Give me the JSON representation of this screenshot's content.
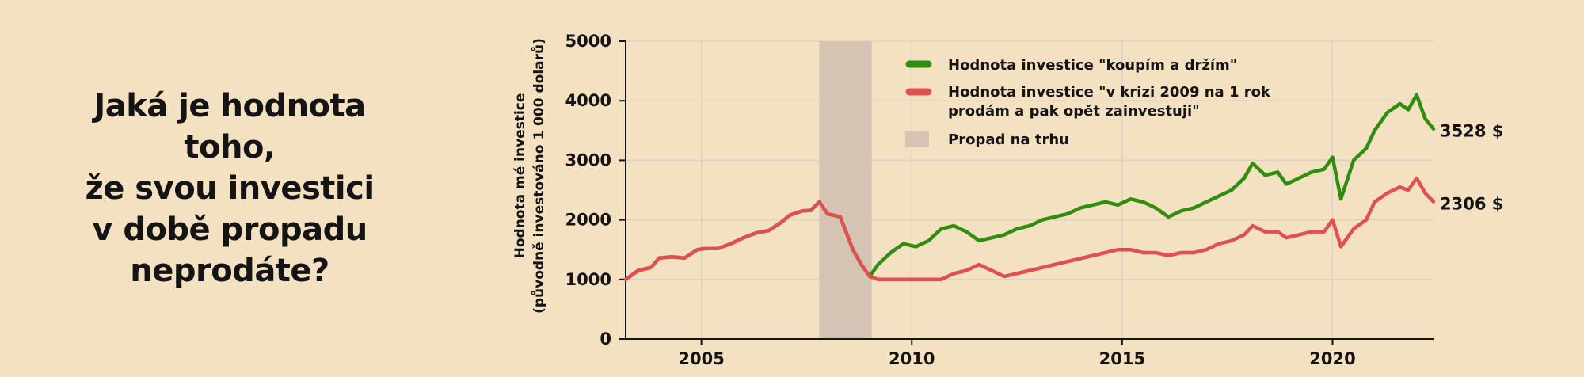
{
  "headline": {
    "lines": [
      "Jaká je hodnota toho,",
      "že svou investici",
      "v době propadu",
      "neprodáte?"
    ]
  },
  "chart_data": {
    "type": "line",
    "title": "",
    "ylabel_lines": [
      "Hodnota mé investice",
      "(původně investováno 1 000 dolarů)"
    ],
    "xlabel": "",
    "xlim": [
      2003.2,
      2022.4
    ],
    "ylim": [
      0,
      5000
    ],
    "xticks": [
      2005,
      2010,
      2015,
      2020
    ],
    "yticks": [
      0,
      1000,
      2000,
      3000,
      4000,
      5000
    ],
    "grid": true,
    "legend_position": "top-center",
    "shaded_region": {
      "label": "Propad na trhu",
      "x_start": 2007.8,
      "x_end": 2009.05,
      "color": "#d5c4b4"
    },
    "series": [
      {
        "name": "Hodnota investice \"koupím a držím\"",
        "color": "#2f8d0f",
        "end_label": "3528 $",
        "x": [
          2003.2,
          2003.5,
          2003.8,
          2004.0,
          2004.3,
          2004.6,
          2004.9,
          2005.1,
          2005.4,
          2005.7,
          2006.0,
          2006.3,
          2006.6,
          2006.9,
          2007.1,
          2007.4,
          2007.6,
          2007.8,
          2008.0,
          2008.3,
          2008.6,
          2008.8,
          2009.0,
          2009.2,
          2009.5,
          2009.8,
          2010.1,
          2010.4,
          2010.7,
          2011.0,
          2011.3,
          2011.6,
          2011.9,
          2012.2,
          2012.5,
          2012.8,
          2013.1,
          2013.4,
          2013.7,
          2014.0,
          2014.3,
          2014.6,
          2014.9,
          2015.2,
          2015.5,
          2015.8,
          2016.1,
          2016.4,
          2016.7,
          2017.0,
          2017.3,
          2017.6,
          2017.9,
          2018.1,
          2018.4,
          2018.7,
          2018.9,
          2019.2,
          2019.5,
          2019.8,
          2020.0,
          2020.2,
          2020.5,
          2020.8,
          2021.0,
          2021.3,
          2021.6,
          2021.8,
          2022.0,
          2022.2,
          2022.4
        ],
        "y": [
          1000,
          1150,
          1200,
          1360,
          1380,
          1360,
          1500,
          1520,
          1520,
          1600,
          1700,
          1780,
          1820,
          1960,
          2080,
          2150,
          2160,
          2300,
          2100,
          2050,
          1500,
          1250,
          1050,
          1250,
          1450,
          1600,
          1550,
          1650,
          1850,
          1900,
          1800,
          1650,
          1700,
          1750,
          1850,
          1900,
          2000,
          2050,
          2100,
          2200,
          2250,
          2300,
          2250,
          2350,
          2300,
          2200,
          2050,
          2150,
          2200,
          2300,
          2400,
          2500,
          2700,
          2950,
          2750,
          2800,
          2600,
          2700,
          2800,
          2850,
          3050,
          2350,
          3000,
          3200,
          3500,
          3800,
          3950,
          3850,
          4100,
          3700,
          3528
        ]
      },
      {
        "name": "Hodnota investice \"v krizi 2009 na 1 rok prodám a pak opět zainvestuji\"",
        "color": "#e05050",
        "end_label": "2306 $",
        "x": [
          2003.2,
          2003.5,
          2003.8,
          2004.0,
          2004.3,
          2004.6,
          2004.9,
          2005.1,
          2005.4,
          2005.7,
          2006.0,
          2006.3,
          2006.6,
          2006.9,
          2007.1,
          2007.4,
          2007.6,
          2007.8,
          2008.0,
          2008.3,
          2008.6,
          2008.8,
          2009.0,
          2009.2,
          2009.5,
          2009.8,
          2010.1,
          2010.4,
          2010.7,
          2011.0,
          2011.3,
          2011.6,
          2011.9,
          2012.2,
          2012.5,
          2012.8,
          2013.1,
          2013.4,
          2013.7,
          2014.0,
          2014.3,
          2014.6,
          2014.9,
          2015.2,
          2015.5,
          2015.8,
          2016.1,
          2016.4,
          2016.7,
          2017.0,
          2017.3,
          2017.6,
          2017.9,
          2018.1,
          2018.4,
          2018.7,
          2018.9,
          2019.2,
          2019.5,
          2019.8,
          2020.0,
          2020.2,
          2020.5,
          2020.8,
          2021.0,
          2021.3,
          2021.6,
          2021.8,
          2022.0,
          2022.2,
          2022.4
        ],
        "y": [
          1000,
          1150,
          1200,
          1360,
          1380,
          1360,
          1500,
          1520,
          1520,
          1600,
          1700,
          1780,
          1820,
          1960,
          2080,
          2150,
          2160,
          2300,
          2100,
          2050,
          1500,
          1250,
          1050,
          1000,
          1000,
          1000,
          1000,
          1000,
          1000,
          1100,
          1150,
          1250,
          1150,
          1050,
          1100,
          1150,
          1200,
          1250,
          1300,
          1350,
          1400,
          1450,
          1500,
          1500,
          1450,
          1450,
          1400,
          1450,
          1450,
          1500,
          1600,
          1650,
          1750,
          1900,
          1800,
          1800,
          1700,
          1750,
          1800,
          1800,
          2000,
          1550,
          1850,
          2000,
          2300,
          2450,
          2550,
          2500,
          2700,
          2450,
          2306
        ]
      }
    ]
  }
}
